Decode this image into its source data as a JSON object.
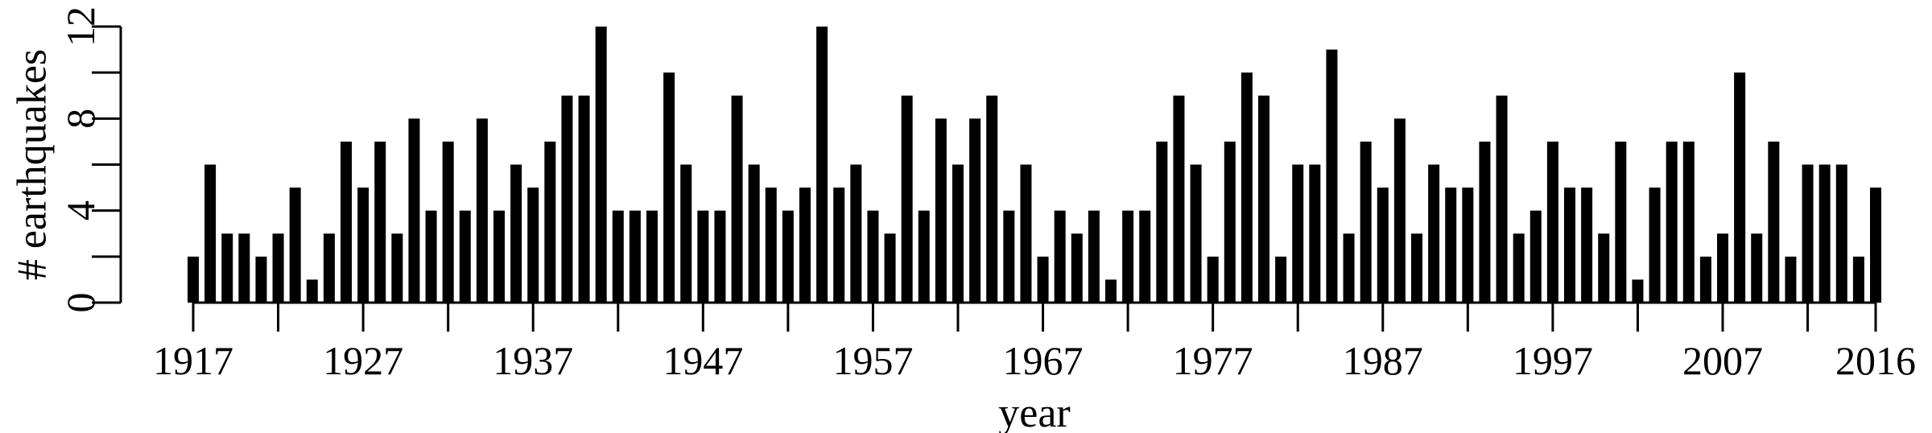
{
  "chart_data": {
    "type": "bar",
    "title": "",
    "xlabel": "year",
    "ylabel": "# earthquakes",
    "x_start": 1917,
    "x": [
      1917,
      1918,
      1919,
      1920,
      1921,
      1922,
      1923,
      1924,
      1925,
      1926,
      1927,
      1928,
      1929,
      1930,
      1931,
      1932,
      1933,
      1934,
      1935,
      1936,
      1937,
      1938,
      1939,
      1940,
      1941,
      1942,
      1943,
      1944,
      1945,
      1946,
      1947,
      1948,
      1949,
      1950,
      1951,
      1952,
      1953,
      1954,
      1955,
      1956,
      1957,
      1958,
      1959,
      1960,
      1961,
      1962,
      1963,
      1964,
      1965,
      1966,
      1967,
      1968,
      1969,
      1970,
      1971,
      1972,
      1973,
      1974,
      1975,
      1976,
      1977,
      1978,
      1979,
      1980,
      1981,
      1982,
      1983,
      1984,
      1985,
      1986,
      1987,
      1988,
      1989,
      1990,
      1991,
      1992,
      1993,
      1994,
      1995,
      1996,
      1997,
      1998,
      1999,
      2000,
      2001,
      2002,
      2003,
      2004,
      2005,
      2006,
      2007,
      2008,
      2009,
      2010,
      2011,
      2012,
      2013,
      2014,
      2015,
      2016
    ],
    "values": [
      2,
      6,
      3,
      3,
      2,
      3,
      5,
      1,
      3,
      7,
      5,
      7,
      3,
      8,
      4,
      7,
      4,
      8,
      4,
      6,
      5,
      7,
      9,
      9,
      12,
      4,
      4,
      4,
      10,
      6,
      4,
      4,
      9,
      6,
      5,
      4,
      5,
      12,
      5,
      6,
      4,
      3,
      9,
      4,
      8,
      6,
      8,
      9,
      4,
      6,
      2,
      4,
      3,
      4,
      1,
      4,
      4,
      7,
      9,
      6,
      2,
      7,
      10,
      9,
      2,
      6,
      6,
      11,
      3,
      7,
      5,
      8,
      3,
      6,
      5,
      5,
      7,
      9,
      3,
      4,
      7,
      5,
      5,
      3,
      7,
      1,
      5,
      7,
      7,
      2,
      3,
      10,
      3,
      7,
      2,
      6,
      6,
      6,
      2,
      5
    ],
    "xticks": [
      1917,
      1927,
      1937,
      1947,
      1957,
      1967,
      1977,
      1987,
      1997,
      2007,
      2016
    ],
    "xtick_labels": [
      "1917",
      "1927",
      "1937",
      "1947",
      "1957",
      "1967",
      "1977",
      "1987",
      "1997",
      "2007",
      "2016"
    ],
    "minor_xticks": [
      1922,
      1932,
      1942,
      1952,
      1962,
      1972,
      1982,
      1992,
      2002,
      2012
    ],
    "yticks": [
      0,
      2,
      4,
      6,
      8,
      10,
      12
    ],
    "ytick_labels": [
      "0",
      "",
      "4",
      "",
      "8",
      "",
      "12"
    ],
    "ylim": [
      0,
      12
    ],
    "grid": false,
    "bar_color": "#000000"
  }
}
